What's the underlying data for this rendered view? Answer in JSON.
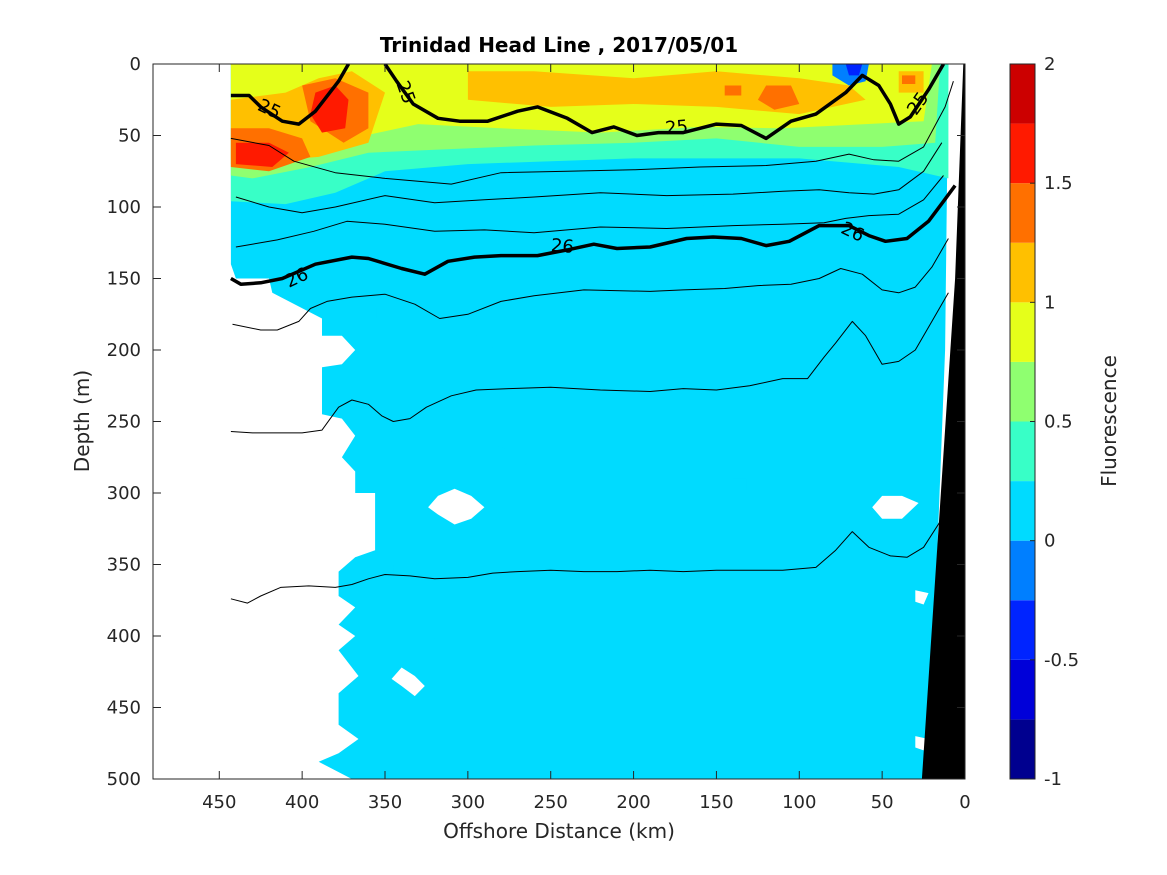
{
  "chart_data": {
    "type": "heatmap",
    "title": "Trinidad Head Line , 2017/05/01",
    "xlabel": "Offshore Distance (km)",
    "ylabel": "Depth (m)",
    "colorbar_label": "Fluorescence",
    "xlim": [
      490,
      0
    ],
    "ylim": [
      500,
      0
    ],
    "x_reversed": true,
    "y_reversed": true,
    "x_ticks": [
      450,
      400,
      350,
      300,
      250,
      200,
      150,
      100,
      50,
      0
    ],
    "x_tick_labels": [
      "450",
      "400",
      "350",
      "300",
      "250",
      "200",
      "150",
      "100",
      "50",
      "0"
    ],
    "y_ticks": [
      0,
      50,
      100,
      150,
      200,
      250,
      300,
      350,
      400,
      450,
      500
    ],
    "y_tick_labels": [
      "0",
      "50",
      "100",
      "150",
      "200",
      "250",
      "300",
      "350",
      "400",
      "450",
      "500"
    ],
    "colorbar": {
      "min": -1,
      "max": 2,
      "levels": [
        -1,
        -0.75,
        -0.5,
        -0.25,
        0,
        0.25,
        0.5,
        0.75,
        1,
        1.25,
        1.5,
        1.75,
        2
      ],
      "tick_values": [
        2,
        1.5,
        1,
        0.5,
        0,
        -0.5,
        -1
      ],
      "tick_labels": [
        "2",
        "1.5",
        "1",
        "0.5",
        "0",
        "-0.5",
        "-1"
      ],
      "colors": [
        "#00008f",
        "#0000d9",
        "#0024ff",
        "#007fff",
        "#00dbff",
        "#38ffc7",
        "#8fff70",
        "#e5ff1a",
        "#ffc000",
        "#ff7000",
        "#ff1a00",
        "#cc0000"
      ]
    },
    "background_color": "#00dbff",
    "contour_labels": [
      {
        "text": "25",
        "x": 420,
        "y": 32,
        "rot": 25
      },
      {
        "text": "25",
        "x": 338,
        "y": 20,
        "rot": 70
      },
      {
        "text": "25",
        "x": 174,
        "y": 45,
        "rot": -5
      },
      {
        "text": "25",
        "x": 28,
        "y": 28,
        "rot": -55
      },
      {
        "text": "26",
        "x": 403,
        "y": 150,
        "rot": -25
      },
      {
        "text": "26",
        "x": 243,
        "y": 128,
        "rot": 5
      },
      {
        "text": "26",
        "x": 68,
        "y": 118,
        "rot": 25
      }
    ],
    "isopycnals": [
      {
        "level": "25",
        "bold": true,
        "points": [
          [
            443,
            22
          ],
          [
            432,
            22
          ],
          [
            425,
            30
          ],
          [
            412,
            40
          ],
          [
            402,
            42
          ],
          [
            392,
            33
          ],
          [
            378,
            12
          ],
          [
            372,
            0
          ]
        ]
      },
      {
        "level": "25",
        "bold": true,
        "points": [
          [
            350,
            0
          ],
          [
            343,
            12
          ],
          [
            333,
            28
          ],
          [
            318,
            38
          ],
          [
            305,
            40
          ],
          [
            288,
            40
          ],
          [
            270,
            33
          ],
          [
            258,
            30
          ],
          [
            240,
            38
          ],
          [
            225,
            48
          ],
          [
            212,
            44
          ],
          [
            198,
            50
          ],
          [
            185,
            48
          ],
          [
            170,
            48
          ],
          [
            150,
            42
          ],
          [
            135,
            43
          ],
          [
            120,
            52
          ],
          [
            105,
            40
          ],
          [
            90,
            35
          ],
          [
            72,
            20
          ],
          [
            62,
            8
          ],
          [
            52,
            15
          ],
          [
            45,
            28
          ],
          [
            40,
            42
          ],
          [
            33,
            37
          ],
          [
            22,
            18
          ],
          [
            13,
            0
          ]
        ]
      },
      {
        "level": "26",
        "bold": true,
        "points": [
          [
            443,
            150
          ],
          [
            437,
            154
          ],
          [
            425,
            153
          ],
          [
            412,
            150
          ],
          [
            392,
            140
          ],
          [
            370,
            135
          ],
          [
            360,
            136
          ],
          [
            340,
            143
          ],
          [
            326,
            147
          ],
          [
            312,
            138
          ],
          [
            296,
            135
          ],
          [
            280,
            134
          ],
          [
            258,
            134
          ],
          [
            240,
            130
          ],
          [
            224,
            126
          ],
          [
            210,
            129
          ],
          [
            190,
            128
          ],
          [
            168,
            122
          ],
          [
            152,
            121
          ],
          [
            135,
            122
          ],
          [
            120,
            127
          ],
          [
            106,
            124
          ],
          [
            88,
            113
          ],
          [
            70,
            113
          ],
          [
            58,
            120
          ],
          [
            48,
            124
          ],
          [
            35,
            122
          ],
          [
            22,
            110
          ],
          [
            13,
            96
          ],
          [
            6,
            85
          ]
        ]
      },
      {
        "level": "thin",
        "bold": false,
        "points": [
          [
            443,
            52
          ],
          [
            420,
            57
          ],
          [
            405,
            68
          ],
          [
            380,
            76
          ],
          [
            350,
            80
          ],
          [
            310,
            84
          ],
          [
            280,
            76
          ],
          [
            240,
            75
          ],
          [
            200,
            74
          ],
          [
            160,
            72
          ],
          [
            120,
            71
          ],
          [
            90,
            68
          ],
          [
            70,
            63
          ],
          [
            55,
            67
          ],
          [
            40,
            68
          ],
          [
            25,
            58
          ],
          [
            12,
            30
          ],
          [
            7,
            12
          ]
        ]
      },
      {
        "level": "thin",
        "bold": false,
        "points": [
          [
            440,
            93
          ],
          [
            420,
            100
          ],
          [
            400,
            104
          ],
          [
            380,
            100
          ],
          [
            350,
            92
          ],
          [
            320,
            97
          ],
          [
            290,
            95
          ],
          [
            260,
            93
          ],
          [
            220,
            90
          ],
          [
            180,
            92
          ],
          [
            140,
            91
          ],
          [
            110,
            89
          ],
          [
            88,
            88
          ],
          [
            70,
            90
          ],
          [
            55,
            91
          ],
          [
            40,
            88
          ],
          [
            25,
            75
          ],
          [
            14,
            55
          ]
        ]
      },
      {
        "level": "thin",
        "bold": false,
        "points": [
          [
            440,
            128
          ],
          [
            415,
            123
          ],
          [
            393,
            117
          ],
          [
            373,
            110
          ],
          [
            350,
            112
          ],
          [
            320,
            117
          ],
          [
            290,
            116
          ],
          [
            260,
            118
          ],
          [
            220,
            114
          ],
          [
            180,
            115
          ],
          [
            140,
            113
          ],
          [
            110,
            112
          ],
          [
            85,
            111
          ],
          [
            72,
            108
          ],
          [
            58,
            106
          ],
          [
            40,
            105
          ],
          [
            25,
            95
          ],
          [
            13,
            78
          ]
        ]
      },
      {
        "level": "thin",
        "bold": false,
        "points": [
          [
            442,
            182
          ],
          [
            425,
            186
          ],
          [
            415,
            186
          ],
          [
            402,
            180
          ],
          [
            395,
            171
          ],
          [
            385,
            166
          ],
          [
            370,
            163
          ],
          [
            350,
            161
          ],
          [
            332,
            168
          ],
          [
            317,
            178
          ],
          [
            300,
            175
          ],
          [
            280,
            166
          ],
          [
            260,
            162
          ],
          [
            230,
            158
          ],
          [
            190,
            159
          ],
          [
            170,
            158
          ],
          [
            145,
            157
          ],
          [
            125,
            155
          ],
          [
            105,
            154
          ],
          [
            88,
            150
          ],
          [
            75,
            143
          ],
          [
            62,
            147
          ],
          [
            50,
            158
          ],
          [
            40,
            160
          ],
          [
            30,
            156
          ],
          [
            20,
            142
          ],
          [
            10,
            122
          ]
        ]
      },
      {
        "level": "thin",
        "bold": false,
        "points": [
          [
            443,
            257
          ],
          [
            430,
            258
          ],
          [
            418,
            258
          ],
          [
            400,
            258
          ],
          [
            388,
            256
          ],
          [
            383,
            248
          ],
          [
            378,
            240
          ],
          [
            370,
            235
          ],
          [
            360,
            238
          ],
          [
            352,
            246
          ],
          [
            345,
            250
          ],
          [
            335,
            248
          ],
          [
            325,
            240
          ],
          [
            310,
            232
          ],
          [
            295,
            228
          ],
          [
            275,
            227
          ],
          [
            250,
            226
          ],
          [
            220,
            228
          ],
          [
            190,
            229
          ],
          [
            170,
            227
          ],
          [
            150,
            228
          ],
          [
            130,
            225
          ],
          [
            110,
            220
          ],
          [
            95,
            220
          ],
          [
            85,
            205
          ],
          [
            78,
            195
          ],
          [
            68,
            180
          ],
          [
            60,
            190
          ],
          [
            50,
            210
          ],
          [
            40,
            208
          ],
          [
            30,
            200
          ],
          [
            20,
            180
          ],
          [
            10,
            160
          ]
        ]
      },
      {
        "level": "thin",
        "bold": false,
        "points": [
          [
            443,
            374
          ],
          [
            433,
            377
          ],
          [
            425,
            372
          ],
          [
            413,
            366
          ],
          [
            396,
            365
          ],
          [
            380,
            366
          ],
          [
            370,
            364
          ],
          [
            360,
            360
          ],
          [
            350,
            357
          ],
          [
            335,
            358
          ],
          [
            320,
            360
          ],
          [
            300,
            359
          ],
          [
            285,
            356
          ],
          [
            270,
            355
          ],
          [
            250,
            354
          ],
          [
            230,
            355
          ],
          [
            210,
            355
          ],
          [
            190,
            354
          ],
          [
            170,
            355
          ],
          [
            150,
            354
          ],
          [
            130,
            354
          ],
          [
            110,
            354
          ],
          [
            90,
            352
          ],
          [
            78,
            340
          ],
          [
            68,
            327
          ],
          [
            58,
            338
          ],
          [
            45,
            344
          ],
          [
            35,
            345
          ],
          [
            25,
            338
          ],
          [
            15,
            320
          ]
        ]
      }
    ]
  }
}
